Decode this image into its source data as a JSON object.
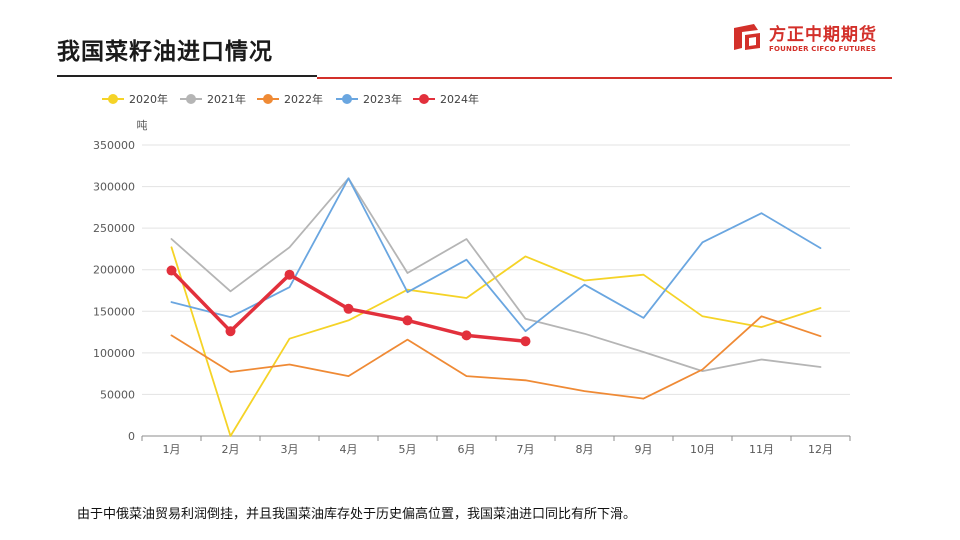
{
  "header": {
    "title": "我国菜籽油进口情况",
    "logo_name": "方正中期期货",
    "logo_sub": "FOUNDER CIFCO FUTURES",
    "brand_color": "#d3302a"
  },
  "chart_data": {
    "type": "line",
    "ylabel": "吨",
    "ylim": [
      0,
      350000
    ],
    "yticks": [
      0,
      50000,
      100000,
      150000,
      200000,
      250000,
      300000,
      350000
    ],
    "categories": [
      "1月",
      "2月",
      "3月",
      "4月",
      "5月",
      "6月",
      "7月",
      "8月",
      "9月",
      "10月",
      "11月",
      "12月"
    ],
    "grid": true,
    "legend_position": "top-left",
    "series": [
      {
        "name": "2020年",
        "color": "#f5d327",
        "markers": false,
        "values": [
          227000,
          0,
          117000,
          139000,
          176000,
          166000,
          216000,
          187000,
          194000,
          144000,
          131000,
          154000
        ]
      },
      {
        "name": "2021年",
        "color": "#b5b5b5",
        "markers": false,
        "values": [
          237000,
          174000,
          227000,
          310000,
          196000,
          237000,
          141000,
          123000,
          101000,
          78000,
          92000,
          83000
        ]
      },
      {
        "name": "2022年",
        "color": "#ef8a35",
        "markers": false,
        "values": [
          121000,
          77000,
          86000,
          72000,
          116000,
          72000,
          67000,
          54000,
          45000,
          80000,
          144000,
          120000
        ]
      },
      {
        "name": "2023年",
        "color": "#6aa6e0",
        "markers": false,
        "values": [
          161000,
          143000,
          179000,
          310000,
          173000,
          212000,
          126000,
          182000,
          142000,
          233000,
          268000,
          226000
        ]
      },
      {
        "name": "2024年",
        "color": "#e2303c",
        "markers": true,
        "values": [
          199000,
          126000,
          194000,
          153000,
          139000,
          121000,
          114000,
          null,
          null,
          null,
          null,
          null
        ]
      }
    ]
  },
  "caption": "由于中俄菜油贸易利润倒挂，并且我国菜油库存处于历史偏高位置，我国菜油进口同比有所下滑。"
}
